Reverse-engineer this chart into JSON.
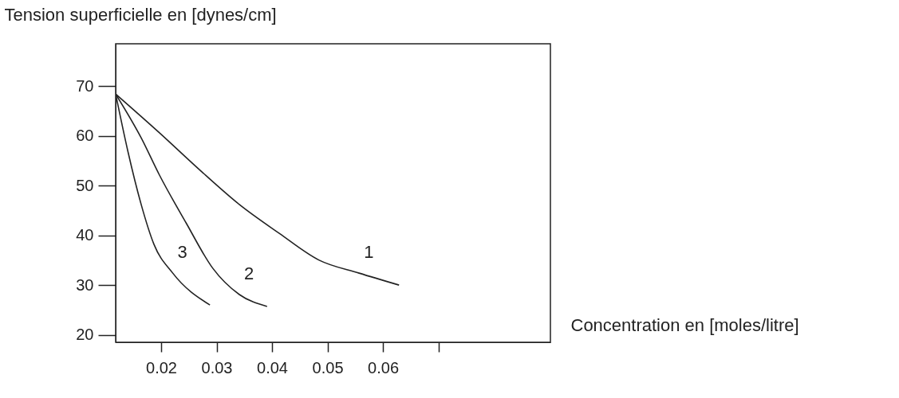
{
  "chart_data": {
    "type": "line",
    "xlabel": "Concentration en [moles/litre]",
    "ylabel": "Tension superficielle en [dynes/cm]",
    "xlim": [
      0.0118,
      0.0902
    ],
    "ylim": [
      18.5,
      78.5
    ],
    "xticks": [
      0.02,
      0.03,
      0.04,
      0.05,
      0.06,
      {
        "value": 0.07,
        "label": null
      }
    ],
    "yticks": [
      20,
      30,
      40,
      50,
      60,
      70
    ],
    "grid": false,
    "series": [
      {
        "name": "1",
        "color": "#222222",
        "x": [
          0.0118,
          0.0197,
          0.0269,
          0.0341,
          0.0413,
          0.0485,
          0.0557,
          0.0629
        ],
        "values": [
          68.4,
          60.6,
          53.2,
          46.2,
          40.4,
          35.0,
          32.4,
          30.0
        ]
      },
      {
        "name": "2",
        "color": "#222222",
        "x": [
          0.0118,
          0.0164,
          0.0197,
          0.0245,
          0.0293,
          0.0341,
          0.0391
        ],
        "values": [
          68.4,
          59.6,
          52.1,
          42.5,
          33.4,
          28.1,
          25.7
        ]
      },
      {
        "name": "3",
        "color": "#222222",
        "x": [
          0.0118,
          0.014,
          0.0164,
          0.0187,
          0.0221,
          0.0288
        ],
        "values": [
          68.4,
          56.9,
          46.2,
          38.2,
          32.4,
          26.0
        ]
      }
    ]
  }
}
